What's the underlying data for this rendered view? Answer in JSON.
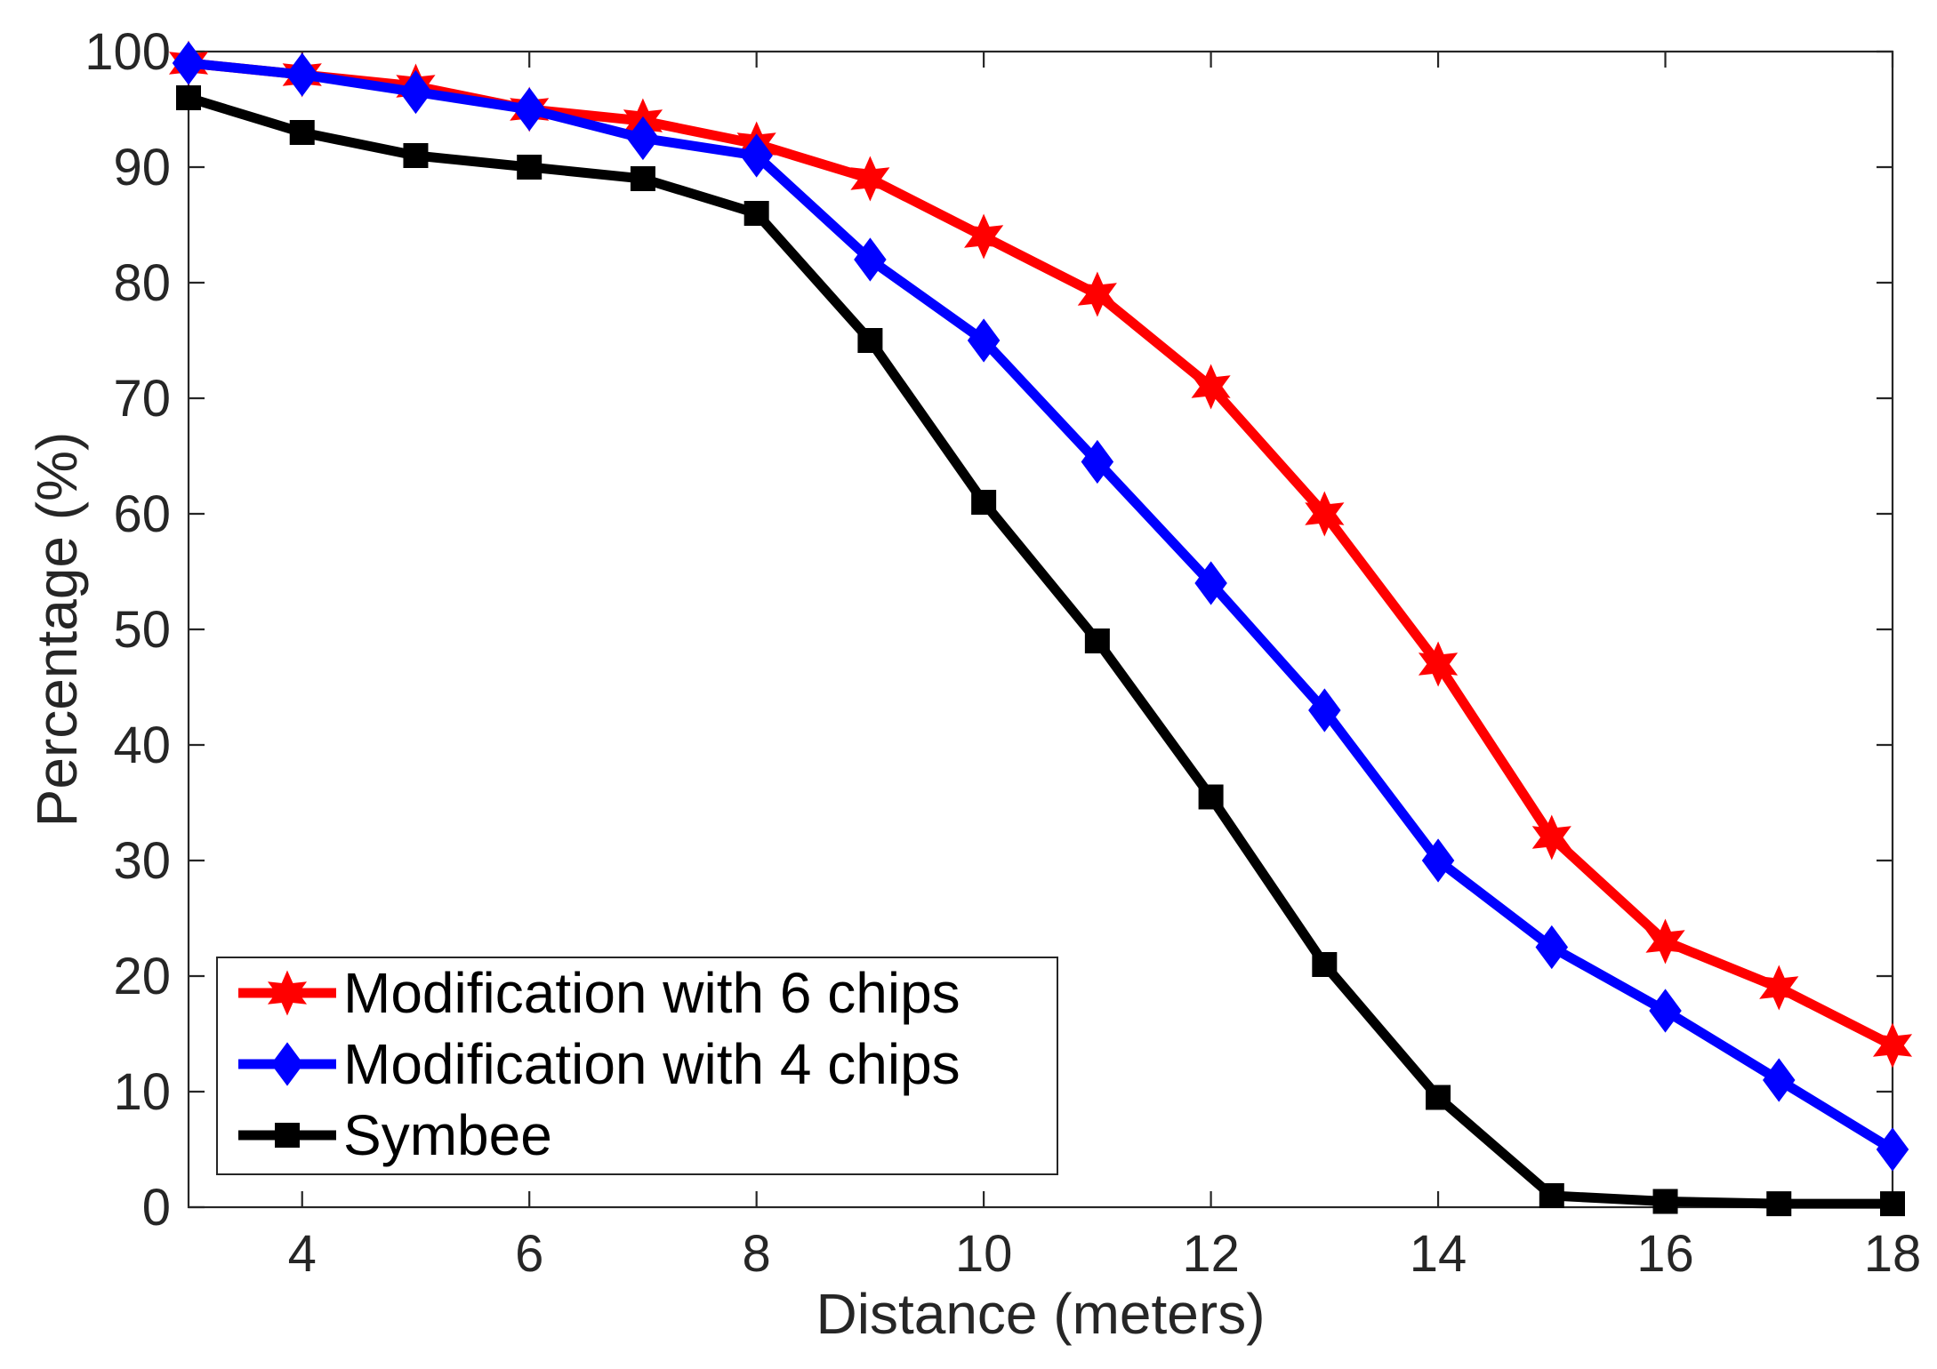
{
  "chart_data": {
    "type": "line",
    "title": "",
    "xlabel": "Distance (meters)",
    "ylabel": "Percentage (%)",
    "xlim": [
      3,
      18
    ],
    "ylim": [
      0,
      100
    ],
    "xticks": [
      4,
      6,
      8,
      10,
      12,
      14,
      16,
      18
    ],
    "yticks": [
      0,
      10,
      20,
      30,
      40,
      50,
      60,
      70,
      80,
      90,
      100
    ],
    "grid": false,
    "legend_position": "bottom-left",
    "x": [
      3,
      4,
      5,
      6,
      7,
      8,
      9,
      10,
      11,
      12,
      13,
      14,
      15,
      16,
      17,
      18
    ],
    "series": [
      {
        "name": "Modification with 6 chips",
        "color": "#ff0000",
        "marker": "hexagram",
        "values": [
          99,
          98,
          97,
          95,
          94,
          92,
          89,
          84,
          79,
          71,
          60,
          47,
          32,
          23,
          19,
          14
        ]
      },
      {
        "name": "Modification with 4 chips",
        "color": "#0000ff",
        "marker": "diamond",
        "values": [
          99,
          98,
          96.5,
          95,
          92.5,
          91,
          82,
          75,
          64.5,
          54,
          43,
          30,
          22.5,
          17,
          11,
          5
        ]
      },
      {
        "name": "Symbee",
        "color": "#000000",
        "marker": "square",
        "values": [
          96,
          93,
          91,
          90,
          89,
          86,
          75,
          61,
          49,
          35.5,
          21,
          9.5,
          1,
          0.5,
          0.3,
          0.3
        ]
      }
    ]
  }
}
